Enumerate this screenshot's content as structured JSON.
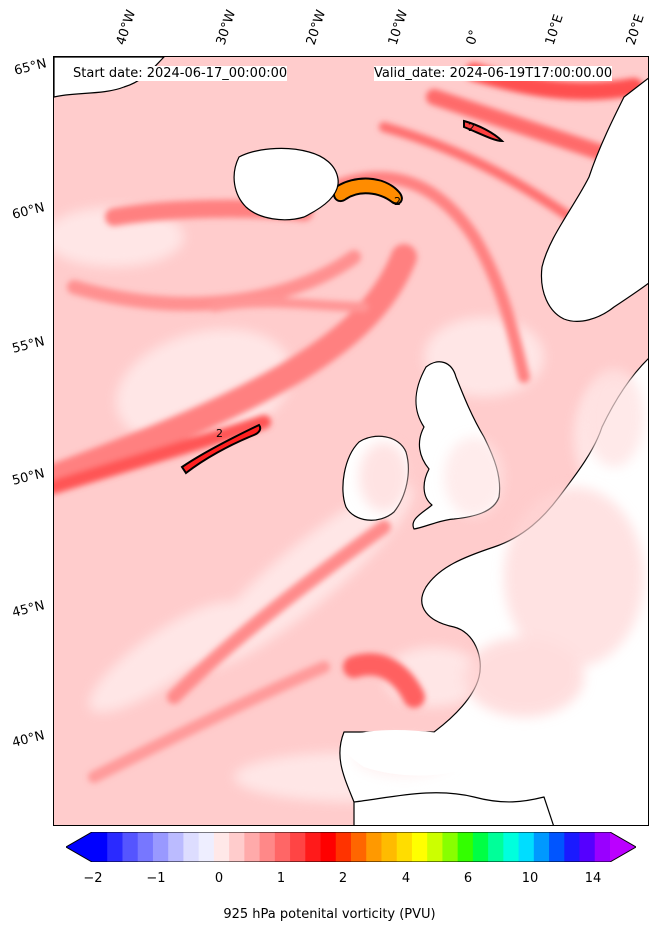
{
  "header": {
    "start_date": "Start date: 2024-06-17_00:00:00",
    "valid_date": "Valid_date: 2024-06-19T17:00:00.00"
  },
  "longitude_labels": [
    "40°W",
    "30°W",
    "20°W",
    "10°W",
    "0°",
    "10°E",
    "20°E"
  ],
  "latitude_labels": [
    "65°N",
    "60°N",
    "55°N",
    "50°N",
    "45°N",
    "40°N"
  ],
  "map": {
    "field": "925 hPa potential vorticity",
    "contour_label": "2",
    "land_color": "#ffffff",
    "coastline_color": "#000000"
  },
  "colorbar": {
    "title": "925 hPa potenital vorticity (PVU)",
    "tick_labels": [
      "−2",
      "−1",
      "0",
      "1",
      "2",
      "4",
      "6",
      "10",
      "14"
    ],
    "colors": [
      "#0000ff",
      "#2a2aff",
      "#5555ff",
      "#7777ff",
      "#9999ff",
      "#bbbbff",
      "#ddddff",
      "#eeeeff",
      "#ffe8e8",
      "#ffcccc",
      "#ffaaaa",
      "#ff8888",
      "#ff6666",
      "#ff4444",
      "#ff1a1a",
      "#ff0000",
      "#ff3300",
      "#ff6600",
      "#ff9900",
      "#ffbb00",
      "#ffdd00",
      "#ffff00",
      "#ccff00",
      "#88ff00",
      "#33ff00",
      "#00ff44",
      "#00ff99",
      "#00ffdd",
      "#00ddff",
      "#0099ff",
      "#0055ff",
      "#1a1aff",
      "#5500ff",
      "#9900ff"
    ],
    "extend_low_color": "#0000ff",
    "extend_high_color": "#bb00ff"
  }
}
